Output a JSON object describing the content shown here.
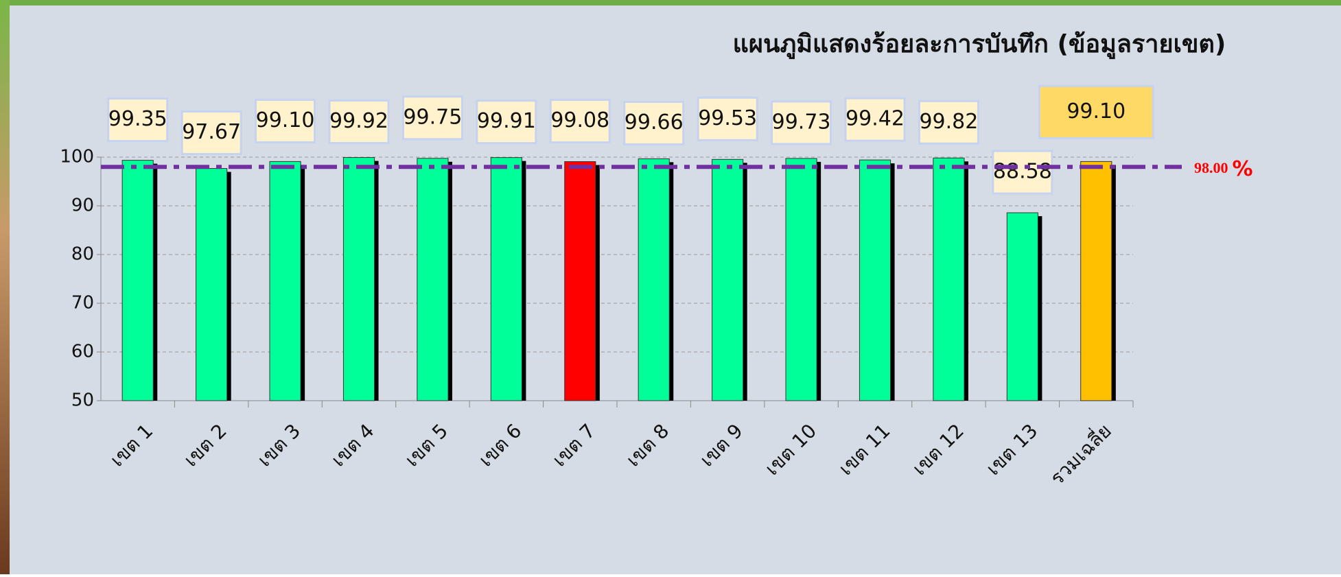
{
  "chart_data": {
    "type": "bar",
    "title": "แผนภูมิแสดงร้อยละการบันทึก (ข้อมูลรายเขต)",
    "categories": [
      "เขต 1",
      "เขต 2",
      "เขต 3",
      "เขต 4",
      "เขต 5",
      "เขต 6",
      "เขต 7",
      "เขต 8",
      "เขต 9",
      "เขต 10",
      "เขต 11",
      "เขต 12",
      "เขต 13",
      "รวมเฉลี่ย"
    ],
    "values": [
      99.35,
      97.67,
      99.1,
      99.92,
      99.75,
      99.91,
      99.08,
      99.66,
      99.53,
      99.73,
      99.42,
      99.82,
      88.58,
      99.1
    ],
    "value_labels": [
      "99.35",
      "97.67",
      "99.10",
      "99.92",
      "99.75",
      "99.91",
      "99.08",
      "99.66",
      "99.53",
      "99.73",
      "99.42",
      "99.82",
      "88.58",
      "99.10"
    ],
    "colors": [
      "#00ff99",
      "#00ff99",
      "#00ff99",
      "#00ff99",
      "#00ff99",
      "#00ff99",
      "#ff0000",
      "#00ff99",
      "#00ff99",
      "#00ff99",
      "#00ff99",
      "#00ff99",
      "#00ff99",
      "#ffc000"
    ],
    "ylim": [
      50,
      100
    ],
    "yticks": [
      50,
      60,
      70,
      80,
      90,
      100
    ],
    "grid": true,
    "reference_line": {
      "value": 98,
      "label": "98.00",
      "unit": "%",
      "color": "#7030a0"
    }
  }
}
